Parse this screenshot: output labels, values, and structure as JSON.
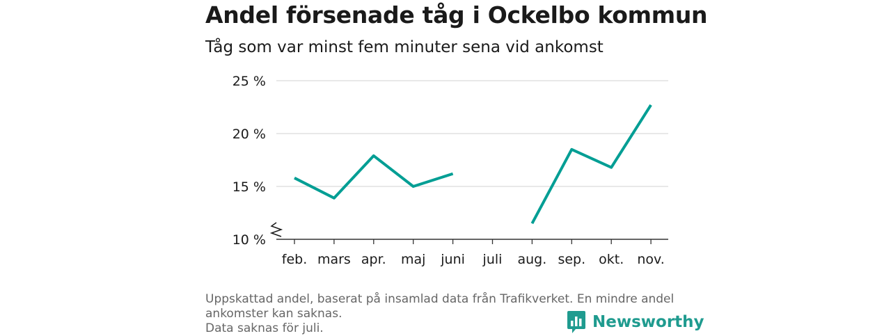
{
  "header": {
    "title": "Andel försenade tåg i Ockelbo kommun",
    "subtitle": "Tåg som var minst fem minuter sena vid ankomst"
  },
  "chart_data": {
    "type": "line",
    "title": "Andel försenade tåg i Ockelbo kommun",
    "subtitle": "Tåg som var minst fem minuter sena vid ankomst",
    "xlabel": "",
    "ylabel": "",
    "categories": [
      "feb.",
      "mars",
      "apr.",
      "maj",
      "juni",
      "juli",
      "aug.",
      "sep.",
      "okt.",
      "nov."
    ],
    "series": [
      {
        "values": [
          15.8,
          13.9,
          17.9,
          15.0,
          16.2,
          null,
          11.5,
          18.5,
          16.8,
          22.7
        ]
      }
    ],
    "ylim": [
      10,
      25
    ],
    "yticks": [
      10,
      15,
      20,
      25
    ],
    "ytick_labels": [
      "10 %",
      "15 %",
      "20 %",
      "25 %"
    ],
    "axis_break": true,
    "grid": true,
    "legend": "none",
    "color": "#009e94"
  },
  "footnote": {
    "lines": [
      "Uppskattad andel, baserat på insamlad data från Trafikverket. En mindre andel",
      "ankomster kan saknas.",
      "Data saknas för juli."
    ]
  },
  "brand": {
    "name": "Newsworthy",
    "text_color": "#1f9b8f",
    "icon": "bar-chart-speech-bubble-icon"
  }
}
